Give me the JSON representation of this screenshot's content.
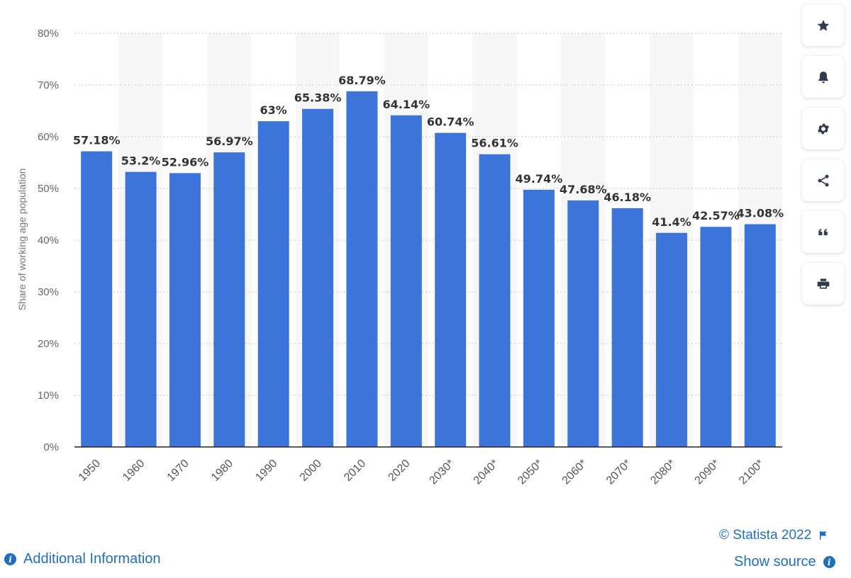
{
  "chart_data": {
    "type": "bar",
    "categories": [
      "1950",
      "1960",
      "1970",
      "1980",
      "1990",
      "2000",
      "2010",
      "2020",
      "2030*",
      "2040*",
      "2050*",
      "2060*",
      "2070*",
      "2080*",
      "2090*",
      "2100*"
    ],
    "values": [
      57.18,
      53.2,
      52.96,
      56.97,
      63,
      65.38,
      68.79,
      64.14,
      60.74,
      56.61,
      49.74,
      47.68,
      46.18,
      41.4,
      42.57,
      43.08
    ],
    "data_labels": [
      "57.18%",
      "53.2%",
      "52.96%",
      "56.97%",
      "63%",
      "65.38%",
      "68.79%",
      "64.14%",
      "60.74%",
      "56.61%",
      "49.74%",
      "47.68%",
      "46.18%",
      "41.4%",
      "42.57%",
      "43.08%"
    ],
    "title": "",
    "xlabel": "",
    "ylabel": "Share of working age population",
    "ylim": [
      0,
      80
    ],
    "yticks": [
      0,
      10,
      20,
      30,
      40,
      50,
      60,
      70,
      80
    ],
    "ytick_labels": [
      "0%",
      "10%",
      "20%",
      "30%",
      "40%",
      "50%",
      "60%",
      "70%",
      "80%"
    ],
    "grid": true,
    "bar_color": "#3d74d9",
    "band_color": "#f7f7f7"
  },
  "sidebar": {
    "buttons": [
      {
        "icon": "star-icon"
      },
      {
        "icon": "bell-icon"
      },
      {
        "icon": "gear-icon"
      },
      {
        "icon": "share-icon"
      },
      {
        "icon": "quote-icon"
      },
      {
        "icon": "print-icon"
      }
    ]
  },
  "footer": {
    "copyright": "© Statista 2022",
    "show_source": "Show source",
    "additional_info": "Additional Information",
    "info_glyph": "i",
    "link_color": "#1f6fbf"
  }
}
